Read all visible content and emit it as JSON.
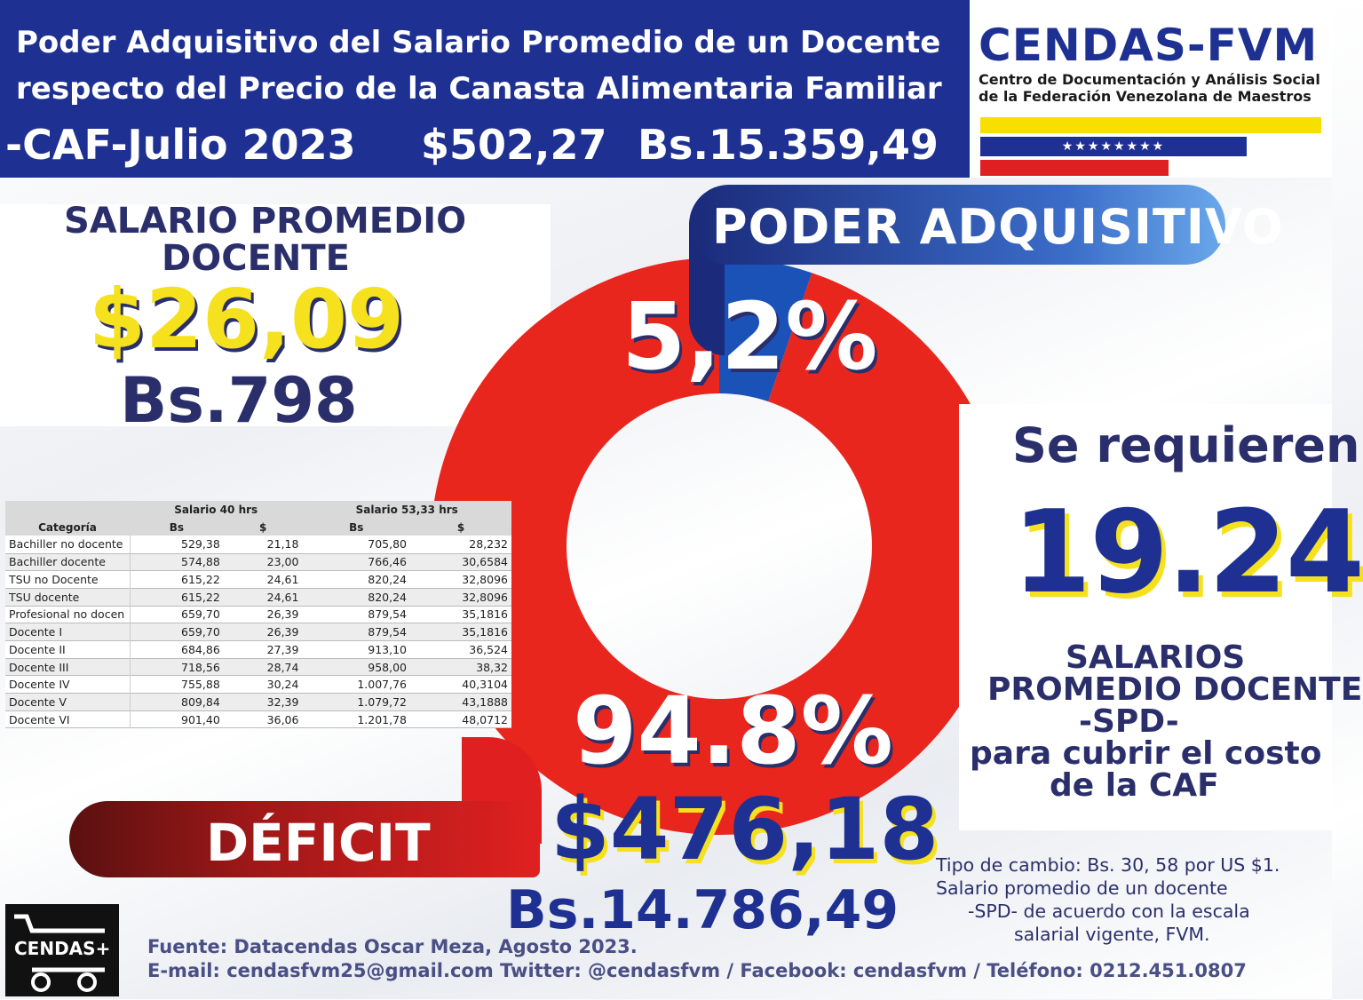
{
  "header": {
    "line1": "Poder Adquisitivo del Salario Promedio de un Docente",
    "line2": "respecto del Precio de la Canasta Alimentaria Familiar",
    "line3": "-CAF-Julio 2023",
    "caf_usd": "$502,27",
    "caf_bs": "Bs.15.359,49"
  },
  "logo": {
    "title": "CENDAS-FVM",
    "subtitle1": "Centro de Documentación y Análisis Social",
    "subtitle2": "de la Federación Venezolana de Maestros",
    "stars": "★★★★★★★★",
    "colors": {
      "yellow": "#f7e000",
      "blue": "#1e3192",
      "red": "#e02020"
    }
  },
  "salario": {
    "title1": "SALARIO PROMEDIO",
    "title2": "DOCENTE",
    "usd": "$26,09",
    "bs": "Bs.798"
  },
  "table": {
    "group_headers": [
      "Salario 40 hrs",
      "Salario 53,33 hrs"
    ],
    "columns": [
      "Categoría",
      "Bs",
      "$",
      "Bs",
      "$"
    ],
    "rows": [
      [
        "Bachiller no docente",
        "529,38",
        "21,18",
        "705,80",
        "28,232"
      ],
      [
        "Bachiller docente",
        "574,88",
        "23,00",
        "766,46",
        "30,6584"
      ],
      [
        "TSU no Docente",
        "615,22",
        "24,61",
        "820,24",
        "32,8096"
      ],
      [
        "TSU docente",
        "615,22",
        "24,61",
        "820,24",
        "32,8096"
      ],
      [
        "Profesional no docen",
        "659,70",
        "26,39",
        "879,54",
        "35,1816"
      ],
      [
        "Docente I",
        "659,70",
        "26,39",
        "879,54",
        "35,1816"
      ],
      [
        "Docente II",
        "684,86",
        "27,39",
        "913,10",
        "36,524"
      ],
      [
        "Docente III",
        "718,56",
        "28,74",
        "958,00",
        "38,32"
      ],
      [
        "Docente IV",
        "755,88",
        "30,24",
        "1.007,76",
        "40,3104"
      ],
      [
        "Docente V",
        "809,84",
        "32,39",
        "1.079,72",
        "43,1888"
      ],
      [
        "Docente VI",
        "901,40",
        "36,06",
        "1.201,78",
        "48,0712"
      ]
    ]
  },
  "chart_data": {
    "type": "pie",
    "title": "PODER ADQUISITIVO",
    "slices": [
      {
        "label": "5,2%",
        "value": 5.2,
        "color": "#1a52b8"
      },
      {
        "label": "94.8%",
        "value": 94.8,
        "color": "#e8261e"
      }
    ]
  },
  "poder": {
    "label": "PODER ADQUISITIVO"
  },
  "requeridos": {
    "line1": "Se requieren",
    "number": "19.24",
    "line2": "SALARIOS",
    "line3": "PROMEDIO DOCENTE",
    "line4": "-SPD-",
    "line5": "para cubrir el costo",
    "line6": "de la CAF"
  },
  "deficit": {
    "label": "DÉFICIT",
    "usd": "$476,18",
    "bs": "Bs.14.786,49"
  },
  "notes": {
    "line1": "Tipo de cambio: Bs. 30, 58 por US $1.",
    "line2": "Salario promedio de un docente",
    "line3": "-SPD- de acuerdo con la escala",
    "line4": "salarial vigente, FVM."
  },
  "footer": {
    "logo_text": "CENDAS+",
    "line1": "Fuente: Datacendas Oscar Meza, Agosto 2023.",
    "line2": "E-mail: cendasfvm25@gmail.com Twitter: @cendasfvm / Facebook: cendasfvm / Teléfono: 0212.451.0807"
  }
}
